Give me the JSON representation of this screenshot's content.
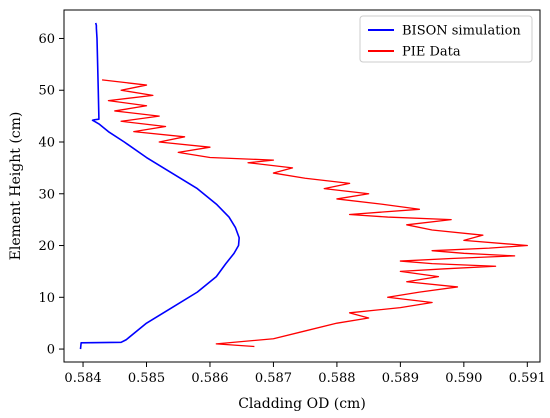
{
  "chart_data": {
    "type": "line",
    "title": "",
    "xlabel": "Cladding OD (cm)",
    "ylabel": "Element Height (cm)",
    "xlim": [
      0.5837,
      0.5912
    ],
    "ylim": [
      -2.5,
      65.5
    ],
    "xticks": [
      0.584,
      0.585,
      0.586,
      0.587,
      0.588,
      0.589,
      0.59,
      0.591
    ],
    "xtick_labels": [
      "0.584",
      "0.585",
      "0.586",
      "0.587",
      "0.588",
      "0.589",
      "0.590",
      "0.591"
    ],
    "yticks": [
      0,
      10,
      20,
      30,
      40,
      50,
      60
    ],
    "ytick_labels": [
      "0",
      "10",
      "20",
      "30",
      "40",
      "50",
      "60"
    ],
    "grid": false,
    "legend_position": "top-right",
    "series": [
      {
        "name": "BISON simulation",
        "color": "#0000ff",
        "x": [
          0.58396,
          0.58397,
          0.5846,
          0.58468,
          0.585,
          0.5854,
          0.5858,
          0.5861,
          0.58625,
          0.58638,
          0.58645,
          0.58646,
          0.5864,
          0.5863,
          0.5861,
          0.5858,
          0.5854,
          0.585,
          0.58465,
          0.5844,
          0.58425,
          0.58418,
          0.58415,
          0.58418,
          0.58425,
          0.58424,
          0.58423,
          0.58422,
          0.58421,
          0.58421,
          0.5842
        ],
        "y": [
          0,
          1.2,
          1.3,
          1.8,
          5,
          8,
          11,
          14,
          16.5,
          18.5,
          20,
          21.5,
          23.5,
          25.5,
          28,
          31,
          34,
          37,
          40,
          42,
          43.5,
          44,
          44.2,
          44.3,
          44.4,
          50,
          55,
          60,
          62,
          62.5,
          63
        ]
      },
      {
        "name": "PIE Data",
        "color": "#ff0000",
        "x": [
          0.5867,
          0.5861,
          0.587,
          0.5875,
          0.588,
          0.5885,
          0.5882,
          0.589,
          0.5895,
          0.5888,
          0.5893,
          0.5899,
          0.5891,
          0.5896,
          0.589,
          0.5897,
          0.5905,
          0.5895,
          0.589,
          0.5898,
          0.5908,
          0.59,
          0.5895,
          0.5904,
          0.591,
          0.59,
          0.5903,
          0.5895,
          0.5891,
          0.5898,
          0.5888,
          0.5882,
          0.5893,
          0.5887,
          0.588,
          0.5885,
          0.5878,
          0.5882,
          0.5875,
          0.587,
          0.5873,
          0.5866,
          0.587,
          0.586,
          0.5855,
          0.586,
          0.5852,
          0.5856,
          0.5848,
          0.5853,
          0.5846,
          0.5852,
          0.5845,
          0.585,
          0.5844,
          0.5851,
          0.5846,
          0.585,
          0.5843
        ],
        "y": [
          0.5,
          1.0,
          2.0,
          3.5,
          5.0,
          6.0,
          7.0,
          8.0,
          9.0,
          10.0,
          11.0,
          12.0,
          13.0,
          14.0,
          15.0,
          15.5,
          16.0,
          16.5,
          17.0,
          17.5,
          18.0,
          18.5,
          19.0,
          19.5,
          20.0,
          21.0,
          22.0,
          23.0,
          24.0,
          25.0,
          25.5,
          26.0,
          27.0,
          28.0,
          29.0,
          30.0,
          31.0,
          32.0,
          33.0,
          34.0,
          35.0,
          36.0,
          36.5,
          37.0,
          38.0,
          39.0,
          40.0,
          41.0,
          42.0,
          43.0,
          44.0,
          45.0,
          46.0,
          47.0,
          48.0,
          49.0,
          50.0,
          51.0,
          52.0
        ]
      }
    ]
  }
}
